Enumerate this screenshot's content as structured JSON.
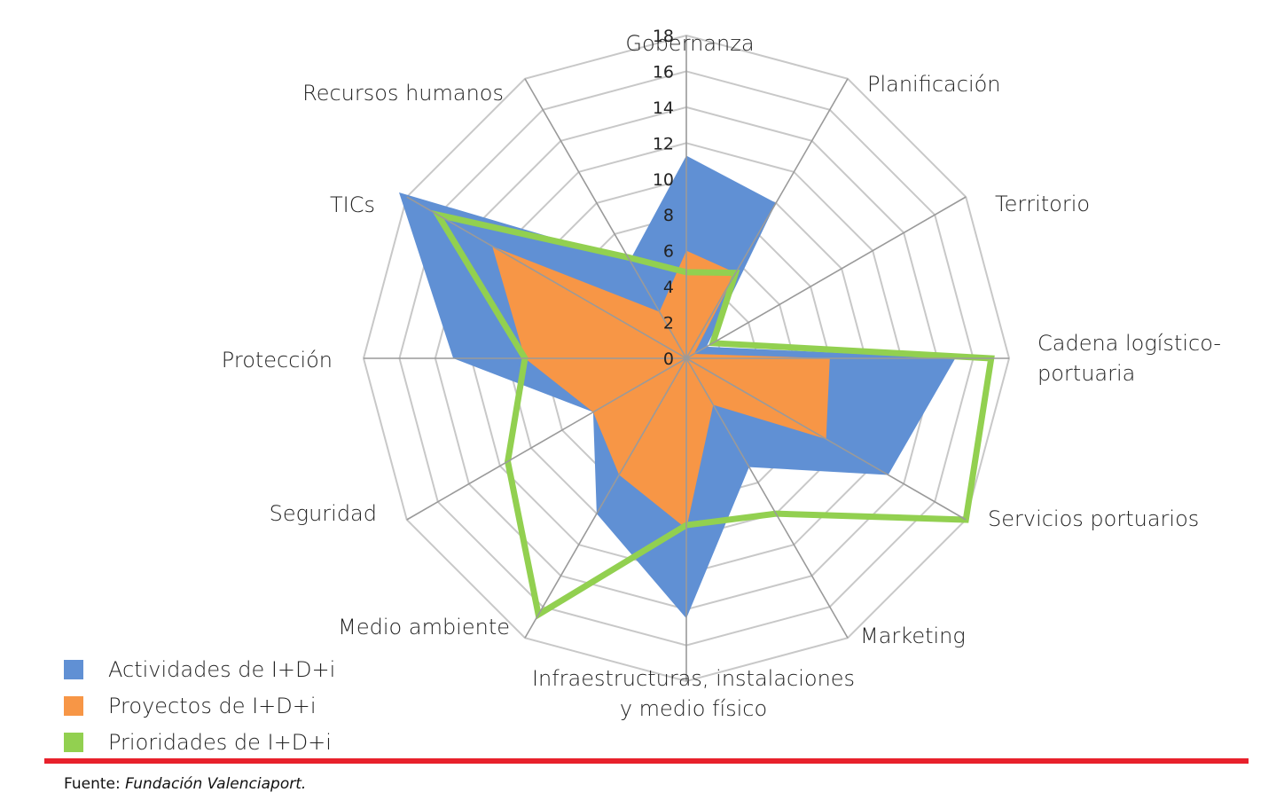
{
  "chart_data": {
    "type": "radar",
    "categories": [
      "Gobernanza",
      "Planificación",
      "Territorio",
      "Cadena logístico-portuaria",
      "Servicios portuarios",
      "Marketing",
      "Infraestructuras, instalaciones y medio físico",
      "Medio ambiente",
      "Seguridad",
      "Protección",
      "TICs",
      "Recursos humanos"
    ],
    "category_label_lines": [
      [
        "Gobernanza"
      ],
      [
        "Planificación"
      ],
      [
        "Territorio"
      ],
      [
        "Cadena logístico-",
        "portuaria"
      ],
      [
        "Servicios portuarios"
      ],
      [
        "Marketing"
      ],
      [
        "Infraestructuras, instalaciones",
        "y medio físico"
      ],
      [
        "Medio ambiente"
      ],
      [
        "Seguridad"
      ],
      [
        "Protección"
      ],
      [
        "TICs"
      ],
      [
        "Recursos humanos"
      ]
    ],
    "rlim": [
      0,
      18
    ],
    "ticks": [
      "0",
      "2",
      "4",
      "6",
      "8",
      "10",
      "12",
      "14",
      "16",
      "18"
    ],
    "series": [
      {
        "name": "Actividades de I+D+i",
        "color": "#6090d4",
        "style": "fill",
        "values": [
          11.3,
          10.0,
          1.3,
          15.0,
          13.0,
          7.0,
          14.5,
          10.0,
          6.0,
          13.0,
          18.5,
          6.3
        ]
      },
      {
        "name": "Proyectos de I+D+i",
        "color": "#f79646",
        "style": "fill",
        "values": [
          6.0,
          5.5,
          0.5,
          8.0,
          9.0,
          3.0,
          9.5,
          7.5,
          6.0,
          9.0,
          12.5,
          3.0
        ]
      },
      {
        "name": "Prioridades de I+D+i",
        "color": "#92d050",
        "style": "line",
        "values": [
          4.8,
          5.5,
          1.7,
          17.0,
          18.0,
          10.0,
          9.3,
          16.5,
          11.5,
          9.0,
          16.0,
          6.5
        ]
      }
    ],
    "grid": true,
    "legend_position": "bottom-left"
  },
  "source": {
    "label": "Fuente:",
    "text": "Fundación Valenciaport."
  }
}
